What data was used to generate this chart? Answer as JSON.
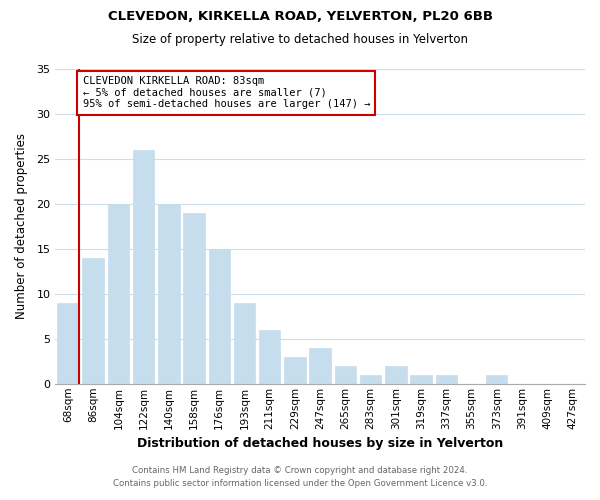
{
  "title": "CLEVEDON, KIRKELLA ROAD, YELVERTON, PL20 6BB",
  "subtitle": "Size of property relative to detached houses in Yelverton",
  "xlabel": "Distribution of detached houses by size in Yelverton",
  "ylabel": "Number of detached properties",
  "bar_color": "#c5dded",
  "marker_color": "#cc0000",
  "categories": [
    "68sqm",
    "86sqm",
    "104sqm",
    "122sqm",
    "140sqm",
    "158sqm",
    "176sqm",
    "193sqm",
    "211sqm",
    "229sqm",
    "247sqm",
    "265sqm",
    "283sqm",
    "301sqm",
    "319sqm",
    "337sqm",
    "355sqm",
    "373sqm",
    "391sqm",
    "409sqm",
    "427sqm"
  ],
  "values": [
    9,
    14,
    20,
    26,
    20,
    19,
    15,
    9,
    6,
    3,
    4,
    2,
    1,
    2,
    1,
    1,
    0,
    1,
    0,
    0,
    0
  ],
  "ylim": [
    0,
    35
  ],
  "yticks": [
    0,
    5,
    10,
    15,
    20,
    25,
    30,
    35
  ],
  "annotation_title": "CLEVEDON KIRKELLA ROAD: 83sqm",
  "annotation_line1": "← 5% of detached houses are smaller (7)",
  "annotation_line2": "95% of semi-detached houses are larger (147) →",
  "footer_line1": "Contains HM Land Registry data © Crown copyright and database right 2024.",
  "footer_line2": "Contains public sector information licensed under the Open Government Licence v3.0.",
  "background_color": "#ffffff",
  "grid_color": "#ccdde8"
}
